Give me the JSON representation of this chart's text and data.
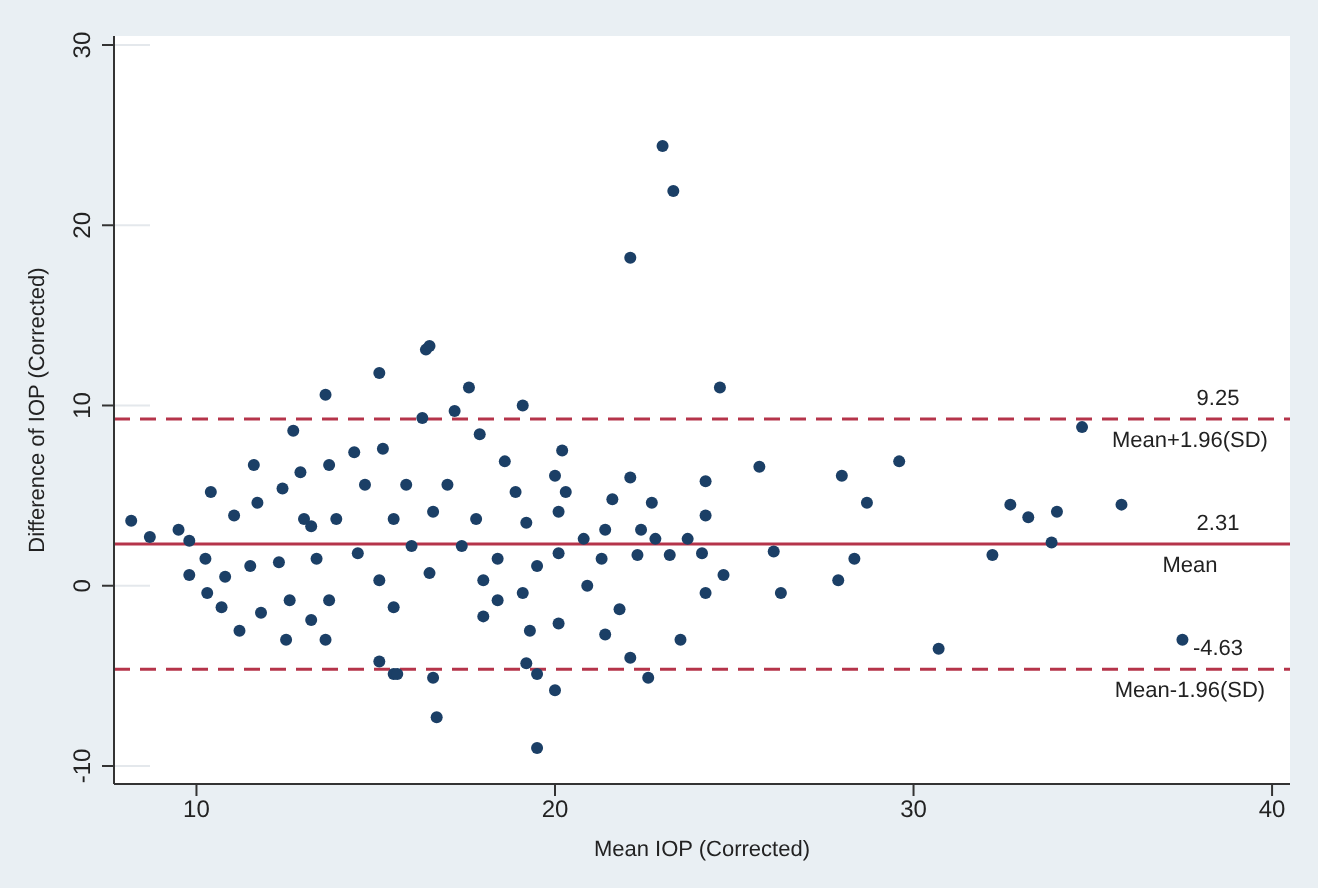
{
  "chart_data": {
    "type": "scatter",
    "xlabel": "Mean IOP (Corrected)",
    "ylabel": "Difference of IOP (Corrected)",
    "xlim": [
      7.7,
      40.5
    ],
    "xticks": [
      10,
      20,
      30,
      40
    ],
    "ylim": [
      -11,
      30.5
    ],
    "yticks": [
      -10,
      0,
      10,
      20,
      30
    ],
    "grid": "y",
    "marker": "circle",
    "series": [
      {
        "color": "#1b3f66",
        "x": [
          8.18,
          8.7,
          9.5,
          9.8,
          9.8,
          10.3,
          10.25,
          10.4,
          10.8,
          10.7,
          11.2,
          11.05,
          11.6,
          11.7,
          11.5,
          11.8,
          12.5,
          12.4,
          12.7,
          12.9,
          13.2,
          13.6,
          13.7,
          13.6,
          13.2,
          14.4,
          15.1,
          15.2,
          15.5,
          15.1,
          16.4,
          16.3,
          16.7,
          16.6,
          17.6,
          17.2,
          17.9,
          18.0,
          18.4,
          12.3,
          12.6,
          13.0,
          13.35,
          13.7,
          13.9,
          14.5,
          15.1,
          15.5,
          14.7,
          15.5,
          16.0,
          16.5,
          15.85,
          16.6,
          17.4,
          18.0,
          17.0,
          17.8,
          18.4,
          16.5,
          19.1,
          24.6,
          20.2,
          18.6,
          20.0,
          22.1,
          24.2,
          18.9,
          20.3,
          21.6,
          22.7,
          24.2,
          20.1,
          19.2,
          21.4,
          22.4,
          20.8,
          23.7,
          22.8,
          21.3,
          22.3,
          23.2,
          24.1,
          20.1,
          19.5,
          20.9,
          24.2,
          24.7,
          19.1,
          21.8,
          23.5,
          21.4,
          20.1,
          19.3,
          22.1,
          19.2,
          19.5,
          20.0,
          22.6,
          19.5,
          15.6,
          34.7,
          25.7,
          28.0,
          29.6,
          28.7,
          32.7,
          33.2,
          34.0,
          35.8,
          33.85,
          32.2,
          26.1,
          28.35,
          26.3,
          27.9,
          30.7,
          37.5,
          23.0,
          23.3,
          22.1
        ],
        "values": [
          3.6,
          2.7,
          3.1,
          2.5,
          0.6,
          -0.4,
          1.5,
          5.2,
          0.5,
          -1.2,
          -2.5,
          3.9,
          6.7,
          4.6,
          1.1,
          -1.5,
          -3.0,
          5.4,
          8.6,
          6.3,
          3.3,
          10.6,
          6.7,
          -3.0,
          -1.9,
          7.4,
          11.8,
          7.6,
          -4.9,
          -4.2,
          13.1,
          9.3,
          -7.3,
          -5.1,
          11.0,
          9.7,
          8.4,
          -1.7,
          -0.8,
          1.3,
          -0.8,
          3.7,
          1.5,
          -0.8,
          3.7,
          1.8,
          0.3,
          -1.2,
          5.6,
          3.7,
          2.2,
          0.7,
          5.6,
          4.1,
          2.2,
          0.3,
          5.6,
          3.7,
          1.5,
          13.3,
          10.0,
          11.0,
          7.5,
          6.9,
          6.1,
          6.0,
          5.8,
          5.2,
          5.2,
          4.8,
          4.6,
          3.9,
          4.1,
          3.5,
          3.1,
          3.1,
          2.6,
          2.6,
          2.6,
          1.5,
          1.7,
          1.7,
          1.8,
          1.8,
          1.1,
          0.0,
          -0.4,
          0.6,
          -0.4,
          -1.3,
          -3.0,
          -2.7,
          -2.1,
          -2.5,
          -4.0,
          -4.3,
          -4.9,
          -5.8,
          -5.1,
          -9.0,
          -4.9,
          8.8,
          6.6,
          6.1,
          6.9,
          4.6,
          4.5,
          3.8,
          4.1,
          4.5,
          2.4,
          1.7,
          1.9,
          1.5,
          -0.4,
          0.3,
          -3.5,
          -3.0,
          24.4,
          21.9,
          18.2
        ]
      }
    ],
    "annotations": [
      {
        "text": "9.25",
        "y": 9.25
      },
      {
        "text": "2.31",
        "y": 2.31
      },
      {
        "text": "-4.63",
        "y": -4.63
      }
    ],
    "ref_lines": [
      {
        "axis": "y",
        "value": 9.25,
        "label": "Mean+1.96(SD)",
        "color": "#b5344a",
        "line_style": "dashed"
      },
      {
        "axis": "y",
        "value": 2.31,
        "label": "Mean",
        "color": "#b5344a",
        "line_style": "solid"
      },
      {
        "axis": "y",
        "value": -4.63,
        "label": "Mean-1.96(SD)",
        "color": "#b5344a",
        "line_style": "dashed"
      }
    ]
  }
}
